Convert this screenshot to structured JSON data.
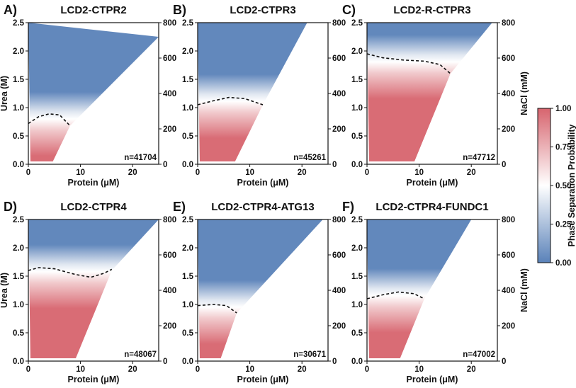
{
  "figure": {
    "colorbar": {
      "label": "Phase Separation Probability",
      "ticks": [
        "1.00",
        "0.75",
        "0.50",
        "0.25",
        "0.00"
      ],
      "colors": {
        "high": "#d7646e",
        "mid": "#ffffff",
        "low": "#5a82b9"
      }
    }
  },
  "chart_data": [
    {
      "type": "scatter",
      "letter": "A)",
      "title": "LCD2-CTPR2",
      "n_label": "n=41704",
      "xlabel": "Protein (μM)",
      "ylabel": "Urea (M)",
      "y2label": "",
      "xlim": [
        0,
        25
      ],
      "ylim": [
        0,
        2.5
      ],
      "y2lim": [
        0,
        800
      ],
      "xticks": [
        "0",
        "10",
        "20"
      ],
      "yticks": [
        "0.0",
        "0.5",
        "1.0",
        "1.5",
        "2.0",
        "2.5"
      ],
      "y2ticks": [
        "0",
        "200",
        "400",
        "600",
        "800"
      ],
      "domain_edge": [
        [
          0,
          0.72
        ],
        [
          8,
          0.68
        ],
        [
          25,
          2.25
        ]
      ],
      "boundary": [
        [
          0,
          0.72
        ],
        [
          2,
          0.84
        ],
        [
          4,
          0.89
        ],
        [
          6,
          0.87
        ],
        [
          8,
          0.68
        ]
      ]
    },
    {
      "type": "scatter",
      "letter": "B)",
      "title": "LCD2-CTPR3",
      "n_label": "n=45261",
      "xlabel": "Protein (μM)",
      "ylabel": "",
      "y2label": "",
      "xlim": [
        0,
        25
      ],
      "ylim": [
        0,
        2.5
      ],
      "y2lim": [
        0,
        800
      ],
      "xticks": [
        "0",
        "10",
        "20"
      ],
      "yticks": [
        "0.0",
        "0.5",
        "1.0",
        "1.5",
        "2.0",
        "2.5"
      ],
      "y2ticks": [
        "0",
        "200",
        "400",
        "600",
        "800"
      ],
      "domain_edge": [
        [
          0,
          1.05
        ],
        [
          12.5,
          1.05
        ],
        [
          21,
          2.5
        ]
      ],
      "boundary": [
        [
          0,
          1.05
        ],
        [
          3,
          1.12
        ],
        [
          6,
          1.18
        ],
        [
          9,
          1.16
        ],
        [
          12.5,
          1.05
        ]
      ]
    },
    {
      "type": "scatter",
      "letter": "C)",
      "title": "LCD2-R-CTPR3",
      "n_label": "n=47712",
      "xlabel": "Protein (μM)",
      "ylabel": "",
      "y2label": "NaCl (mM)",
      "xlim": [
        0,
        25
      ],
      "ylim": [
        0,
        2.5
      ],
      "y2lim": [
        0,
        800
      ],
      "xticks": [
        "0",
        "10",
        "20"
      ],
      "yticks": [
        "0.0",
        "0.5",
        "1.0",
        "1.5",
        "2.0",
        "2.5"
      ],
      "y2ticks": [
        "0",
        "200",
        "400",
        "600",
        "800"
      ],
      "domain_edge": [
        [
          0,
          1.95
        ],
        [
          16,
          1.6
        ],
        [
          24,
          2.5
        ]
      ],
      "boundary": [
        [
          0,
          1.95
        ],
        [
          3,
          1.88
        ],
        [
          7,
          1.84
        ],
        [
          11,
          1.82
        ],
        [
          14,
          1.76
        ],
        [
          16,
          1.6
        ]
      ]
    },
    {
      "type": "scatter",
      "letter": "D)",
      "title": "LCD2-CTPR4",
      "n_label": "n=48067",
      "xlabel": "Protein (μM)",
      "ylabel": "Urea (M)",
      "y2label": "",
      "xlim": [
        0,
        25
      ],
      "ylim": [
        0,
        2.5
      ],
      "y2lim": [
        0,
        800
      ],
      "xticks": [
        "0",
        "10",
        "20"
      ],
      "yticks": [
        "0.0",
        "0.5",
        "1.0",
        "1.5",
        "2.0",
        "2.5"
      ],
      "y2ticks": [
        "0",
        "200",
        "400",
        "600",
        "800"
      ],
      "domain_edge": [
        [
          0,
          1.6
        ],
        [
          16,
          1.6
        ],
        [
          25,
          2.5
        ]
      ],
      "boundary": [
        [
          0,
          1.6
        ],
        [
          2,
          1.65
        ],
        [
          5,
          1.63
        ],
        [
          9,
          1.53
        ],
        [
          12,
          1.48
        ],
        [
          14.5,
          1.55
        ],
        [
          16,
          1.62
        ]
      ]
    },
    {
      "type": "scatter",
      "letter": "E)",
      "title": "LCD2-CTPR4-ATG13",
      "n_label": "n=30671",
      "xlabel": "Protein (μM)",
      "ylabel": "",
      "y2label": "",
      "xlim": [
        0,
        25
      ],
      "ylim": [
        0,
        2.5
      ],
      "y2lim": [
        0,
        800
      ],
      "xticks": [
        "0",
        "10",
        "20"
      ],
      "yticks": [
        "0.0",
        "0.5",
        "1.0",
        "1.5",
        "2.0",
        "2.5"
      ],
      "y2ticks": [
        "0",
        "200",
        "400",
        "600",
        "800"
      ],
      "domain_edge": [
        [
          0,
          0.98
        ],
        [
          7.5,
          0.85
        ],
        [
          24,
          2.5
        ]
      ],
      "boundary": [
        [
          0,
          0.98
        ],
        [
          3,
          1.0
        ],
        [
          5.5,
          0.98
        ],
        [
          7.5,
          0.85
        ]
      ]
    },
    {
      "type": "scatter",
      "letter": "F)",
      "title": "LCD2-CTPR4-FUNDC1",
      "n_label": "n=47002",
      "xlabel": "Protein (μM)",
      "ylabel": "",
      "y2label": "NaCl (mM)",
      "xlim": [
        0,
        25
      ],
      "ylim": [
        0,
        2.5
      ],
      "y2lim": [
        0,
        800
      ],
      "xticks": [
        "0",
        "10",
        "20"
      ],
      "yticks": [
        "0.0",
        "0.5",
        "1.0",
        "1.5",
        "2.0",
        "2.5"
      ],
      "y2ticks": [
        "0",
        "200",
        "400",
        "600",
        "800"
      ],
      "domain_edge": [
        [
          0,
          1.1
        ],
        [
          11,
          1.1
        ],
        [
          20,
          2.5
        ]
      ],
      "boundary": [
        [
          0,
          1.1
        ],
        [
          3,
          1.17
        ],
        [
          6,
          1.22
        ],
        [
          9,
          1.19
        ],
        [
          11,
          1.1
        ]
      ]
    }
  ]
}
